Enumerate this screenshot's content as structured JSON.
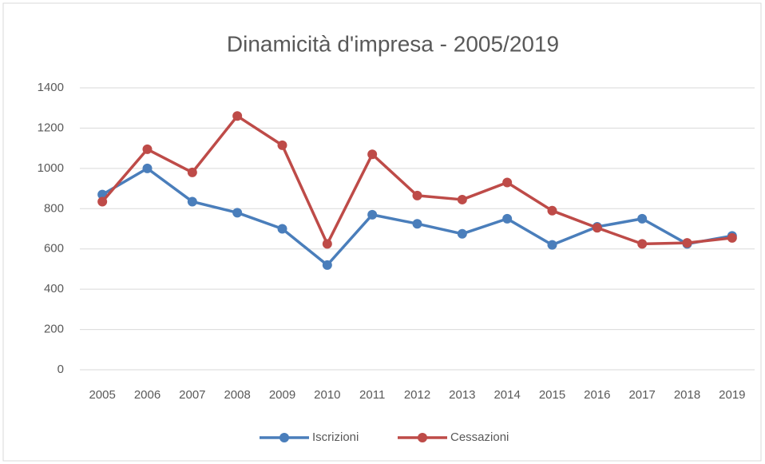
{
  "chart_data": {
    "type": "line",
    "title": "Dinamicità d'impresa - 2005/2019",
    "categories": [
      "2005",
      "2006",
      "2007",
      "2008",
      "2009",
      "2010",
      "2011",
      "2012",
      "2013",
      "2014",
      "2015",
      "2016",
      "2017",
      "2018",
      "2019"
    ],
    "series": [
      {
        "name": "Iscrizioni",
        "color": "#4a7ebb",
        "values": [
          870,
          1000,
          835,
          780,
          700,
          520,
          770,
          725,
          675,
          750,
          620,
          710,
          750,
          625,
          665
        ]
      },
      {
        "name": "Cessazioni",
        "color": "#be4b48",
        "values": [
          835,
          1095,
          980,
          1260,
          1115,
          625,
          1070,
          865,
          845,
          930,
          790,
          705,
          625,
          630,
          655
        ]
      }
    ],
    "ylim": [
      0,
      1400
    ],
    "yticks": [
      0,
      200,
      400,
      600,
      800,
      1000,
      1200,
      1400
    ],
    "grid": true,
    "legend": "bottom"
  }
}
